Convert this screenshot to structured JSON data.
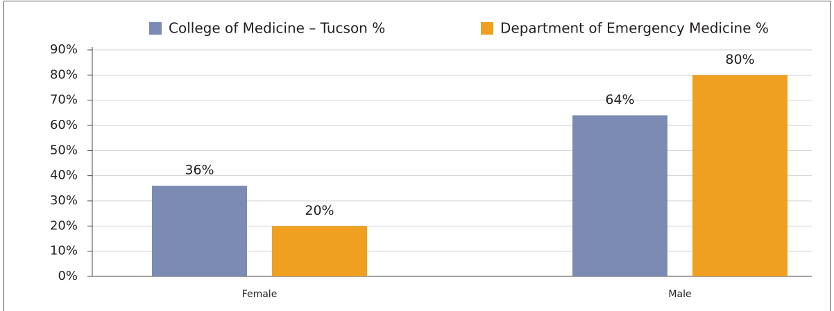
{
  "chart_data": {
    "type": "bar",
    "categories": [
      "Female",
      "Male"
    ],
    "series": [
      {
        "name": "College of Medicine – Tucson %",
        "color": "#7b8bb4",
        "values": [
          36,
          64
        ],
        "value_labels": [
          "36%",
          "64%"
        ]
      },
      {
        "name": "Department of Emergency Medicine %",
        "color": "#f0a020",
        "values": [
          20,
          80
        ],
        "value_labels": [
          "20%",
          "80%"
        ]
      }
    ],
    "ylim": [
      0,
      90
    ],
    "yticks": [
      {
        "value": 0,
        "label": "0%"
      },
      {
        "value": 10,
        "label": "10%"
      },
      {
        "value": 20,
        "label": "20%"
      },
      {
        "value": 30,
        "label": "30%"
      },
      {
        "value": 40,
        "label": "40%"
      },
      {
        "value": 50,
        "label": "50%"
      },
      {
        "value": 60,
        "label": "60%"
      },
      {
        "value": 70,
        "label": "70%"
      },
      {
        "value": 80,
        "label": "80%"
      },
      {
        "value": 90,
        "label": "90%"
      }
    ],
    "grid": true,
    "legend": "top"
  }
}
